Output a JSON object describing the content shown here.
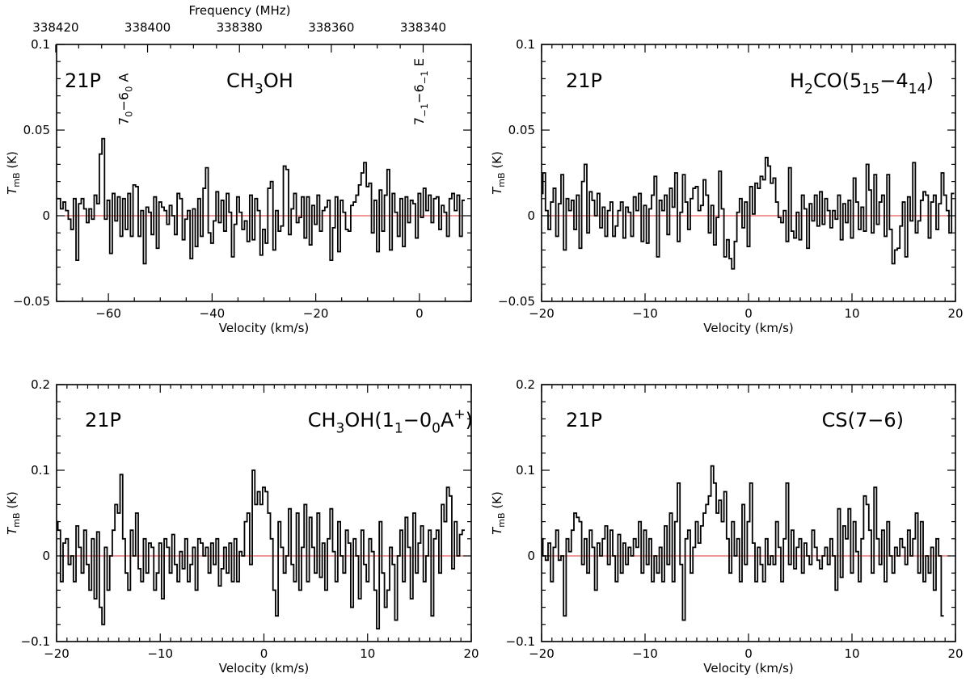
{
  "chart_data": [
    {
      "type": "line",
      "drawstyle": "steps-mid",
      "panel": "top-left",
      "source_label": "21P",
      "molecule_label": [
        "CH",
        "3",
        "OH"
      ],
      "line_annotations": [
        {
          "parts": [
            "7",
            "0",
            "−6",
            "0",
            " A"
          ],
          "x": -57
        },
        {
          "parts": [
            "7",
            "−1",
            "−6",
            "−1",
            " E"
          ],
          "x": 0
        }
      ],
      "xlabel": "Velocity (km/s)",
      "ylabel_main": "T",
      "ylabel_sub": "mB",
      "ylabel_unit": " (K)",
      "xlim": [
        -70,
        10
      ],
      "ylim": [
        -0.05,
        0.1
      ],
      "xticks": [
        -60,
        -40,
        -20,
        0
      ],
      "xtick_labels": [
        "−60",
        "−40",
        "−20",
        "0"
      ],
      "yticks": [
        -0.05,
        0,
        0.05,
        0.1
      ],
      "ytick_labels": [
        "−0.05",
        "0",
        "0.05",
        "0.1"
      ],
      "top_axis": {
        "label": "Frequency (MHz)",
        "ticks": [
          -70.17,
          -52.45,
          -34.72,
          -17.0,
          0.72
        ],
        "tick_labels": [
          "338420",
          "338400",
          "338380",
          "338360",
          "338340"
        ]
      },
      "baseline": 0,
      "x_start": -70,
      "x_step": 0.5,
      "series": [
        {
          "name": "spectrum",
          "values": [
            0.01,
            0.01,
            0.004,
            0.008,
            0.003,
            -0.002,
            -0.008,
            0.01,
            -0.026,
            0.007,
            0.01,
            0.004,
            -0.004,
            0.004,
            -0.002,
            0.012,
            0.007,
            0.036,
            0.045,
            -0.002,
            0.009,
            -0.022,
            0.013,
            -0.003,
            0.011,
            -0.012,
            0.01,
            -0.008,
            0.013,
            -0.012,
            0.018,
            0.017,
            -0.012,
            0.003,
            -0.028,
            0.005,
            0.002,
            -0.011,
            0.011,
            -0.019,
            0.008,
            0.005,
            0.003,
            -0.005,
            0.006,
            0.0,
            -0.011,
            0.013,
            0.01,
            -0.014,
            -0.002,
            0.003,
            -0.025,
            0.004,
            -0.018,
            0.01,
            -0.012,
            0.016,
            0.028,
            -0.01,
            -0.016,
            -0.003,
            0.014,
            -0.004,
            0.009,
            -0.009,
            0.013,
            0.002,
            -0.024,
            -0.005,
            0.011,
            0.002,
            -0.008,
            -0.003,
            -0.015,
            0.012,
            -0.014,
            0.01,
            0.003,
            -0.023,
            -0.008,
            -0.016,
            0.016,
            0.02,
            -0.02,
            0.003,
            -0.009,
            -0.006,
            0.029,
            0.027,
            -0.011,
            0.004,
            0.013,
            -0.004,
            -0.001,
            0.011,
            -0.013,
            0.011,
            -0.017,
            0.006,
            -0.005,
            0.012,
            -0.009,
            0.003,
            0.005,
            0.009,
            -0.026,
            -0.007,
            0.011,
            -0.021,
            0.009,
            0.002,
            -0.008,
            -0.009,
            0.006,
            0.008,
            0.012,
            0.018,
            0.025,
            0.031,
            0.017,
            0.019,
            -0.01,
            0.009,
            -0.021,
            0.015,
            -0.009,
            0.012,
            0.027,
            -0.02,
            0.013,
            0.002,
            -0.012,
            0.01,
            -0.018,
            0.011,
            -0.004,
            0.009,
            0.007,
            -0.013,
            0.013,
            -0.001,
            0.016,
            0.003,
            0.012,
            -0.004,
            0.01,
            0.011,
            -0.008,
            0.006,
            0.002,
            -0.012,
            0.01,
            0.013,
            0.003,
            0.012,
            -0.012,
            0.009
          ]
        }
      ]
    },
    {
      "type": "line",
      "drawstyle": "steps-mid",
      "panel": "top-right",
      "source_label": "21P",
      "molecule_label": [
        "H",
        "2",
        "CO(5",
        "15",
        "−4",
        "14",
        ")"
      ],
      "xlabel": "Velocity (km/s)",
      "ylabel_main": "T",
      "ylabel_sub": "mB",
      "ylabel_unit": " (K)",
      "xlim": [
        -20,
        20
      ],
      "ylim": [
        -0.05,
        0.1
      ],
      "xticks": [
        -20,
        -10,
        0,
        10,
        20
      ],
      "xtick_labels": [
        "−20",
        "−10",
        "0",
        "10",
        "20"
      ],
      "yticks": [
        -0.05,
        0,
        0.05,
        0.1
      ],
      "ytick_labels": [
        "−0.05",
        "0",
        "0.05",
        "0.1"
      ],
      "baseline": 0,
      "x_start": -20,
      "x_step": 0.25,
      "series": [
        {
          "name": "spectrum",
          "values": [
            0.013,
            0.025,
            0.003,
            -0.008,
            0.008,
            0.016,
            -0.012,
            0.007,
            0.024,
            -0.02,
            0.01,
            0.003,
            0.009,
            -0.008,
            0.012,
            -0.019,
            0.02,
            0.03,
            -0.01,
            0.014,
            0.009,
            0.0,
            0.013,
            -0.007,
            0.005,
            -0.012,
            0.003,
            0.008,
            -0.012,
            -0.006,
            0.003,
            0.008,
            -0.013,
            0.005,
            0.002,
            -0.012,
            0.011,
            0.003,
            0.013,
            -0.015,
            0.006,
            -0.016,
            0.004,
            0.012,
            0.023,
            -0.024,
            0.009,
            0.003,
            0.012,
            -0.011,
            0.016,
            0.005,
            0.025,
            -0.015,
            0.002,
            0.024,
            0.008,
            -0.008,
            0.01,
            0.016,
            0.017,
            0.003,
            0.006,
            0.021,
            0.012,
            -0.01,
            0.006,
            -0.017,
            -0.001,
            0.026,
            0.004,
            -0.024,
            -0.014,
            -0.025,
            -0.031,
            -0.015,
            0.002,
            0.01,
            -0.007,
            0.008,
            -0.018,
            0.017,
            0.001,
            0.019,
            0.016,
            0.023,
            0.021,
            0.034,
            0.029,
            0.019,
            0.022,
            0.008,
            -0.001,
            -0.004,
            0.003,
            -0.015,
            0.028,
            -0.009,
            -0.013,
            0.002,
            -0.014,
            0.012,
            0.004,
            -0.019,
            0.007,
            -0.003,
            0.012,
            -0.006,
            0.014,
            -0.005,
            0.01,
            0.003,
            -0.007,
            0.003,
            -0.002,
            0.012,
            -0.014,
            0.007,
            -0.004,
            0.009,
            -0.013,
            0.022,
            0.008,
            -0.008,
            0.005,
            -0.009,
            0.03,
            0.015,
            -0.01,
            0.024,
            -0.005,
            0.008,
            0.012,
            -0.012,
            0.024,
            -0.008,
            -0.028,
            -0.02,
            -0.019,
            -0.006,
            0.008,
            -0.024,
            0.011,
            -0.003,
            0.031,
            -0.01,
            -0.003,
            0.009,
            0.014,
            0.012,
            -0.013,
            0.008,
            0.012,
            -0.008,
            0.007,
            0.025,
            0.012,
            0.003,
            -0.01,
            0.013
          ]
        }
      ]
    },
    {
      "type": "line",
      "drawstyle": "steps-mid",
      "panel": "bottom-left",
      "source_label": "21P",
      "molecule_label": [
        "CH",
        "3",
        "OH(1",
        "1",
        "−0",
        "0",
        "A",
        "+",
        ")"
      ],
      "xlabel": "Velocity (km/s)",
      "ylabel_main": "T",
      "ylabel_sub": "mB",
      "ylabel_unit": " (K)",
      "xlim": [
        -20,
        20
      ],
      "ylim": [
        -0.1,
        0.2
      ],
      "xticks": [
        -20,
        -10,
        0,
        10,
        20
      ],
      "xtick_labels": [
        "−20",
        "−10",
        "0",
        "10",
        "20"
      ],
      "yticks": [
        -0.1,
        0,
        0.1,
        0.2
      ],
      "ytick_labels": [
        "−0.1",
        "0",
        "0.1",
        "0.2"
      ],
      "baseline": 0,
      "x_start": -20,
      "x_step": 0.25,
      "series": [
        {
          "name": "spectrum",
          "values": [
            0.04,
            0.03,
            -0.03,
            0.015,
            0.02,
            -0.01,
            0.0,
            -0.03,
            0.035,
            0.01,
            -0.02,
            0.03,
            -0.01,
            -0.04,
            0.02,
            -0.05,
            0.028,
            -0.06,
            -0.08,
            0.01,
            -0.04,
            0.0,
            0.03,
            0.06,
            0.05,
            0.095,
            0.02,
            -0.02,
            -0.04,
            0.03,
            0.0,
            0.05,
            -0.015,
            -0.03,
            0.02,
            -0.02,
            0.015,
            0.01,
            -0.04,
            -0.02,
            0.015,
            -0.05,
            0.02,
            0.01,
            -0.02,
            0.025,
            -0.01,
            -0.03,
            0.005,
            -0.015,
            0.02,
            -0.03,
            -0.01,
            0.01,
            -0.04,
            0.02,
            0.015,
            0.0,
            0.01,
            -0.02,
            0.015,
            -0.01,
            0.02,
            -0.035,
            -0.015,
            0.01,
            -0.02,
            0.015,
            -0.03,
            0.02,
            -0.03,
            0.005,
            0.0,
            0.04,
            0.05,
            -0.01,
            0.1,
            0.06,
            0.075,
            0.06,
            0.08,
            0.075,
            0.05,
            0.02,
            -0.04,
            -0.07,
            0.04,
            0.01,
            -0.02,
            0.0,
            0.055,
            -0.01,
            -0.03,
            0.05,
            -0.04,
            0.01,
            0.06,
            -0.03,
            0.045,
            0.01,
            -0.02,
            0.05,
            -0.025,
            0.015,
            -0.04,
            0.02,
            0.055,
            0.005,
            -0.03,
            0.04,
            0.0,
            -0.02,
            0.03,
            0.015,
            -0.06,
            0.02,
            0.0,
            -0.05,
            0.03,
            -0.01,
            -0.03,
            0.02,
            0.005,
            -0.04,
            -0.085,
            0.04,
            -0.02,
            -0.06,
            -0.04,
            0.01,
            -0.01,
            -0.075,
            0.0,
            0.03,
            -0.03,
            0.045,
            0.01,
            -0.05,
            0.05,
            -0.02,
            0.015,
            0.035,
            -0.03,
            0.0,
            0.03,
            -0.07,
            0.02,
            0.03,
            -0.02,
            0.06,
            0.04,
            0.08,
            0.07,
            -0.015,
            0.04,
            0.0,
            0.025,
            0.03
          ]
        }
      ]
    },
    {
      "type": "line",
      "drawstyle": "steps-mid",
      "panel": "bottom-right",
      "source_label": "21P",
      "molecule_label": [
        "CS(7−6)"
      ],
      "xlabel": "Velocity (km/s)",
      "ylabel_main": "T",
      "ylabel_sub": "mB",
      "ylabel_unit": " (K)",
      "xlim": [
        -20,
        20
      ],
      "ylim": [
        -0.1,
        0.2
      ],
      "xticks": [
        -20,
        -10,
        0,
        10,
        20
      ],
      "xtick_labels": [
        "−20",
        "−10",
        "0",
        "10",
        "20"
      ],
      "yticks": [
        -0.1,
        0,
        0.1,
        0.2
      ],
      "ytick_labels": [
        "−0.1",
        "0",
        "0.1",
        "0.2"
      ],
      "baseline": 0,
      "x_start": -20,
      "x_step": 0.25,
      "series": [
        {
          "name": "spectrum",
          "values": [
            0.02,
            0.0,
            -0.005,
            0.015,
            -0.03,
            0.01,
            0.03,
            -0.005,
            0.0,
            -0.07,
            0.02,
            0.005,
            0.03,
            0.05,
            0.045,
            0.04,
            -0.01,
            0.02,
            -0.02,
            0.03,
            0.01,
            -0.04,
            0.015,
            0.0,
            0.02,
            0.035,
            -0.01,
            0.03,
            0.0,
            -0.03,
            0.025,
            -0.02,
            0.015,
            -0.01,
            0.01,
            0.0,
            0.02,
            0.01,
            0.04,
            -0.02,
            0.03,
            -0.01,
            0.02,
            -0.03,
            0.0,
            -0.02,
            0.01,
            -0.03,
            0.035,
            -0.01,
            0.05,
            -0.03,
            0.04,
            0.085,
            -0.01,
            -0.075,
            0.02,
            0.03,
            -0.02,
            0.01,
            0.04,
            0.015,
            0.035,
            0.05,
            0.06,
            0.07,
            0.105,
            0.085,
            0.05,
            0.065,
            0.04,
            0.075,
            0.02,
            -0.02,
            0.04,
            0.0,
            0.02,
            -0.03,
            0.06,
            -0.01,
            0.04,
            0.085,
            0.015,
            -0.03,
            0.01,
            -0.01,
            -0.03,
            0.02,
            -0.01,
            0.0,
            -0.01,
            0.04,
            0.01,
            -0.03,
            0.02,
            0.085,
            -0.01,
            0.03,
            -0.015,
            0.01,
            0.02,
            -0.02,
            0.015,
            0.0,
            -0.01,
            0.03,
            0.01,
            -0.005,
            -0.015,
            0.0,
            0.01,
            -0.01,
            0.02,
            0.0,
            -0.04,
            0.055,
            -0.025,
            0.035,
            0.02,
            0.055,
            -0.02,
            0.04,
            0.005,
            -0.03,
            0.02,
            0.07,
            0.06,
            0.03,
            -0.02,
            0.08,
            0.02,
            -0.01,
            0.03,
            -0.03,
            0.04,
            0.0,
            -0.02,
            0.01,
            0.0,
            0.02,
            0.01,
            -0.01,
            0.03,
            0.0,
            0.02,
            0.05,
            -0.02,
            0.04,
            -0.03,
            0.0,
            -0.02,
            0.01,
            -0.04,
            0.02,
            0.0,
            -0.07
          ]
        }
      ]
    }
  ]
}
